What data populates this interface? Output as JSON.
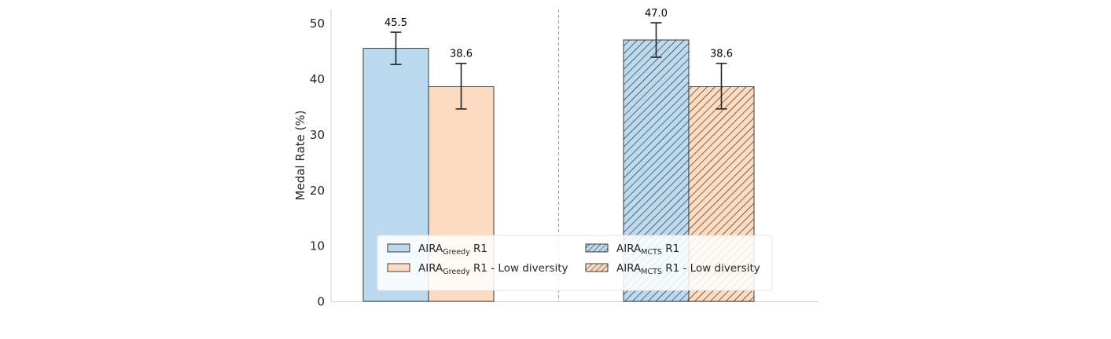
{
  "chart_data": {
    "type": "bar",
    "ylabel": "Medal Rate (%)",
    "ylim": [
      0,
      52.5
    ],
    "yticks": [
      0,
      10,
      20,
      30,
      40,
      50
    ],
    "grid": false,
    "legend_placement": "lower-center",
    "groups": [
      {
        "name": "AIRA Greedy",
        "bars": [
          {
            "series": 0,
            "value": 45.5,
            "label": "45.5",
            "err_low": 42.6,
            "err_high": 48.4
          },
          {
            "series": 1,
            "value": 38.6,
            "label": "38.6",
            "err_low": 34.6,
            "err_high": 42.8
          }
        ]
      },
      {
        "name": "AIRA MCTS",
        "bars": [
          {
            "series": 2,
            "value": 47.0,
            "label": "47.0",
            "err_low": 43.9,
            "err_high": 50.1
          },
          {
            "series": 3,
            "value": 38.6,
            "label": "38.6",
            "err_low": 34.6,
            "err_high": 42.8
          }
        ]
      }
    ],
    "series": [
      {
        "name": "AIRA_Greedy R1",
        "base": "AIRA",
        "sub": "Greedy",
        "rest": " R1",
        "color": "#bbd9ef",
        "hatch": false
      },
      {
        "name": "AIRA_Greedy R1 - Low diversity",
        "base": "AIRA",
        "sub": "Greedy",
        "rest": " R1 - Low diversity",
        "color": "#fddbc0",
        "hatch": false
      },
      {
        "name": "AIRA_MCTS R1",
        "base": "AIRA",
        "sub": "MCTS",
        "rest": " R1",
        "color": "#bbd9ef",
        "hatch": true
      },
      {
        "name": "AIRA_MCTS R1 - Low diversity",
        "base": "AIRA",
        "sub": "MCTS",
        "rest": " R1 - Low diversity",
        "color": "#fddbc0",
        "hatch": true
      }
    ],
    "colors": {
      "edge": "#2b2b2b",
      "axis": "#cccccc",
      "divider": "#999999",
      "errorbar": "#222222",
      "legend_bg": "#ffffff",
      "legend_border": "#e6e6e6"
    }
  }
}
